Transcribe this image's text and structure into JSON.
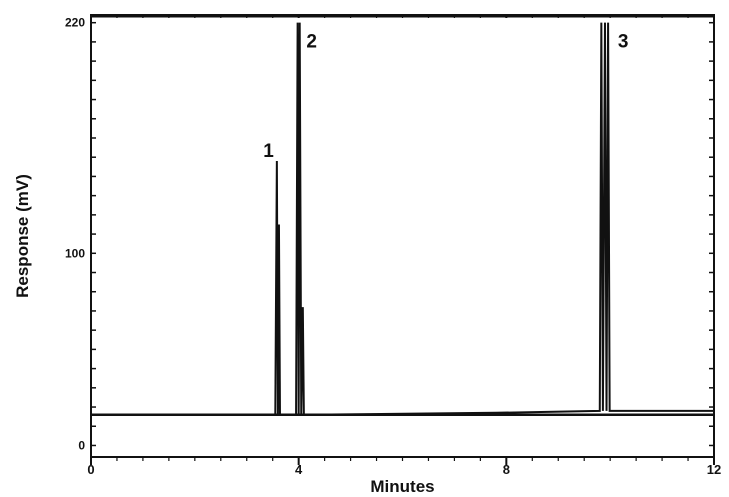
{
  "chart_data": {
    "type": "line",
    "title": "",
    "xlabel": "Minutes",
    "ylabel": "Response (mV)",
    "xlim": [
      0,
      12
    ],
    "ylim": [
      -6,
      224
    ],
    "x_ticks": [
      0,
      4,
      8,
      12
    ],
    "x_tick_labels": [
      "0",
      "4",
      "8",
      "12"
    ],
    "y_ticks": [
      0,
      100,
      220
    ],
    "y_tick_labels": [
      "0",
      "100",
      "220"
    ],
    "grid": false,
    "legend": "none",
    "baseline": 16,
    "series": [
      {
        "values_note": "",
        "x": [
          0,
          3.55,
          3.58,
          3.6,
          3.62,
          3.64,
          3.66,
          3.7,
          3.95,
          3.98,
          4.0,
          4.02,
          4.05,
          4.08,
          4.1,
          4.13,
          7.8,
          9.8,
          9.83,
          9.86,
          9.9,
          9.93,
          9.96,
          9.99,
          12
        ],
        "y": [
          16,
          16,
          148,
          16,
          115,
          16,
          16,
          16,
          16,
          220,
          16,
          220,
          16,
          72,
          16,
          16,
          17,
          18,
          220,
          18,
          220,
          18,
          220,
          18,
          18
        ]
      }
    ],
    "annotations": [
      {
        "text": "1",
        "x": 3.42,
        "y": 150
      },
      {
        "text": "2",
        "x": 4.25,
        "y": 207
      },
      {
        "text": "3",
        "x": 10.25,
        "y": 207
      }
    ],
    "colors": {
      "line": "#111111",
      "axis": "#111111",
      "background": "#ffffff"
    }
  }
}
